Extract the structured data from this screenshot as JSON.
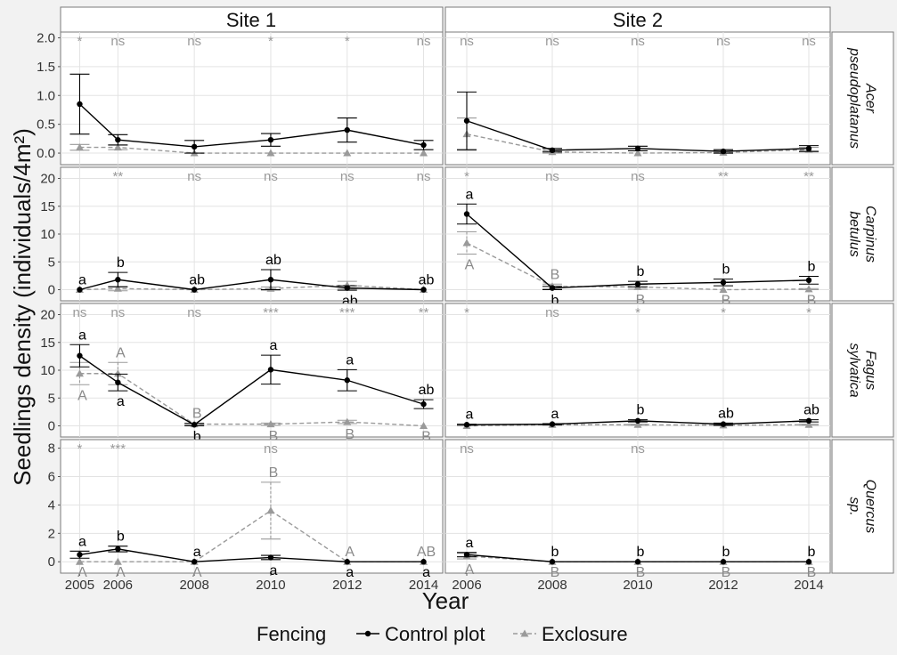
{
  "chart_data": {
    "type": "line",
    "xlabel": "Year",
    "ylabel": "Seedlings density (individuals/4m²)",
    "columns": [
      "Site 1",
      "Site 2"
    ],
    "rows": [
      {
        "label": [
          "Acer",
          "pseudoplatanus"
        ],
        "ticks": [
          "0.0",
          "0.5",
          "1.0",
          "1.5",
          "2.0"
        ],
        "ylim": [
          -0.2,
          2.1
        ],
        "tickValues": [
          0,
          0.5,
          1,
          1.5,
          2
        ]
      },
      {
        "label": [
          "Carpinus",
          "betulus"
        ],
        "ticks": [
          "0",
          "5",
          "10",
          "15",
          "20"
        ],
        "ylim": [
          -2,
          22
        ],
        "tickValues": [
          0,
          5,
          10,
          15,
          20
        ]
      },
      {
        "label": [
          "Fagus",
          "sylvatica"
        ],
        "ticks": [
          "0",
          "5",
          "10",
          "15",
          "20"
        ],
        "ylim": [
          -2,
          22
        ],
        "tickValues": [
          0,
          5,
          10,
          15,
          20
        ]
      },
      {
        "label": [
          "Quercus",
          "sp."
        ],
        "ticks": [
          "0",
          "2",
          "4",
          "6",
          "8"
        ],
        "ylim": [
          -0.8,
          8.6
        ],
        "tickValues": [
          0,
          2,
          4,
          6,
          8
        ]
      }
    ],
    "site_years": [
      {
        "years": [
          2005,
          2006,
          2008,
          2010,
          2012,
          2014
        ],
        "xlim": [
          2004.5,
          2014.5
        ],
        "tick_labels": [
          "2005",
          "2006",
          "2008",
          "2010",
          "2012",
          "2014"
        ]
      },
      {
        "years": [
          2006,
          2008,
          2010,
          2012,
          2014
        ],
        "xlim": [
          2005.5,
          2014.5
        ],
        "tick_labels": [
          "2006",
          "2008",
          "2010",
          "2012",
          "2014"
        ]
      }
    ],
    "legend": {
      "title": "Fencing",
      "items": [
        "Control plot",
        "Exclosure"
      ]
    },
    "colors": {
      "control": "#000000",
      "exclosure": "#9a9a9a"
    },
    "panels": [
      {
        "row": 0,
        "col": 0,
        "control": [
          0.85,
          0.23,
          0.11,
          0.23,
          0.4,
          0.14
        ],
        "control_err": [
          0.52,
          0.09,
          0.11,
          0.11,
          0.21,
          0.08
        ],
        "exclosure": [
          0.1,
          0.1,
          0.0,
          0.0,
          0.0,
          0.0
        ],
        "exclosure_err": [
          0.05,
          0.04,
          0,
          0,
          0,
          0
        ],
        "sig": [
          "*",
          "ns",
          "ns",
          "*",
          "*",
          "ns"
        ],
        "control_letters": [
          "",
          "",
          "",
          "",
          "",
          ""
        ],
        "control_letter_pos": [
          "above",
          "above",
          "above",
          "above",
          "above",
          "above"
        ],
        "exclosure_letters": [
          "",
          "",
          "",
          "",
          "",
          ""
        ],
        "exclosure_letter_pos": [
          "below",
          "below",
          "below",
          "below",
          "below",
          "below"
        ]
      },
      {
        "row": 0,
        "col": 1,
        "control": [
          0.56,
          0.05,
          0.08,
          0.03,
          0.08
        ],
        "control_err": [
          0.5,
          0.03,
          0.04,
          0.03,
          0.05
        ],
        "exclosure": [
          0.33,
          0.02,
          0.0,
          0.01,
          0.06
        ],
        "exclosure_err": [
          0.28,
          0.02,
          0,
          0.01,
          0.04
        ],
        "sig": [
          "ns",
          "ns",
          "ns",
          "ns",
          "ns"
        ],
        "control_letters": [
          "",
          "",
          "",
          "",
          ""
        ],
        "control_letter_pos": [
          "above",
          "above",
          "above",
          "above",
          "above"
        ],
        "exclosure_letters": [
          "",
          "",
          "",
          "",
          ""
        ],
        "exclosure_letter_pos": [
          "below",
          "below",
          "below",
          "below",
          "below"
        ]
      },
      {
        "row": 1,
        "col": 0,
        "control": [
          0.0,
          1.8,
          0.0,
          1.8,
          0.3,
          0.0
        ],
        "control_err": [
          0,
          1.3,
          0,
          1.8,
          0.4,
          0
        ],
        "exclosure": [
          0.0,
          0.2,
          0.0,
          0.2,
          0.8,
          0.0
        ],
        "exclosure_err": [
          0,
          0.4,
          0,
          0.3,
          0.7,
          0
        ],
        "sig": [
          "",
          "**",
          "ns",
          "ns",
          "ns",
          "ns"
        ],
        "control_letters": [
          "a",
          "b",
          "ab",
          "ab",
          "ab",
          "ab"
        ],
        "control_letter_pos": [
          "above",
          "above",
          "above",
          "above",
          "below",
          "above"
        ],
        "exclosure_letters": [
          "",
          "",
          "",
          "",
          "",
          ""
        ],
        "exclosure_letter_pos": [
          "below",
          "below",
          "below",
          "below",
          "below",
          "below"
        ]
      },
      {
        "row": 1,
        "col": 1,
        "control": [
          13.6,
          0.3,
          1.0,
          1.3,
          1.7
        ],
        "control_err": [
          1.8,
          0.3,
          0.5,
          0.6,
          0.7
        ],
        "exclosure": [
          8.4,
          0.6,
          0.5,
          0.0,
          0.1
        ],
        "exclosure_err": [
          2.0,
          0.4,
          0.4,
          0,
          0.1
        ],
        "sig": [
          "*",
          "ns",
          "ns",
          "**",
          "**"
        ],
        "control_letters": [
          "a",
          "b",
          "b",
          "b",
          "b"
        ],
        "control_letter_pos": [
          "above",
          "below",
          "above",
          "above",
          "above"
        ],
        "exclosure_letters": [
          "A",
          "B",
          "B",
          "B",
          "B"
        ],
        "exclosure_letter_pos": [
          "below",
          "above",
          "below",
          "below",
          "below"
        ]
      },
      {
        "row": 2,
        "col": 0,
        "control": [
          12.6,
          7.8,
          0.2,
          10.1,
          8.2,
          3.9
        ],
        "control_err": [
          2.0,
          1.5,
          0.2,
          2.6,
          1.9,
          0.8
        ],
        "exclosure": [
          9.4,
          9.4,
          0.3,
          0.3,
          0.7,
          0.0
        ],
        "exclosure_err": [
          2.0,
          2.0,
          0.2,
          0.2,
          0.3,
          0
        ],
        "sig": [
          "ns",
          "ns",
          "ns",
          "***",
          "***",
          "**"
        ],
        "control_letters": [
          "a",
          "a",
          "b",
          "a",
          "a",
          "ab"
        ],
        "control_letter_pos": [
          "above",
          "below",
          "below",
          "above",
          "above",
          "above"
        ],
        "exclosure_letters": [
          "A",
          "A",
          "B",
          "B",
          "B",
          "B"
        ],
        "exclosure_letter_pos": [
          "below",
          "above",
          "above",
          "below",
          "below",
          "below"
        ]
      },
      {
        "row": 2,
        "col": 1,
        "control": [
          0.2,
          0.3,
          0.9,
          0.3,
          0.9
        ],
        "control_err": [
          0.1,
          0.1,
          0.2,
          0.2,
          0.2
        ],
        "exclosure": [
          0.0,
          0.2,
          0.2,
          0.1,
          0.2
        ],
        "exclosure_err": [
          0,
          0.1,
          0.1,
          0.1,
          0.1
        ],
        "sig": [
          "*",
          "ns",
          "*",
          "*",
          "*"
        ],
        "control_letters": [
          "a",
          "a",
          "b",
          "ab",
          "ab"
        ],
        "control_letter_pos": [
          "above",
          "above",
          "above",
          "above",
          "above"
        ],
        "exclosure_letters": [
          "",
          "",
          "",
          "",
          ""
        ],
        "exclosure_letter_pos": [
          "below",
          "below",
          "below",
          "below",
          "below"
        ]
      },
      {
        "row": 3,
        "col": 0,
        "control": [
          0.5,
          0.9,
          0.0,
          0.3,
          0.0,
          0.0
        ],
        "control_err": [
          0.25,
          0.2,
          0,
          0.15,
          0,
          0
        ],
        "exclosure": [
          0.0,
          0.0,
          0.0,
          3.6,
          0.0,
          0.0
        ],
        "exclosure_err": [
          0,
          0,
          0,
          2.0,
          0,
          0
        ],
        "sig": [
          "*",
          "***",
          "",
          "ns",
          "",
          ""
        ],
        "control_letters": [
          "a",
          "b",
          "a",
          "a",
          "a",
          "a"
        ],
        "control_letter_pos": [
          "above",
          "above",
          "above",
          "below",
          "below",
          "below"
        ],
        "exclosure_letters": [
          "A",
          "A",
          "A",
          "B",
          "A",
          "AB"
        ],
        "exclosure_letter_pos": [
          "below",
          "below",
          "below",
          "above",
          "above",
          "above"
        ]
      },
      {
        "row": 3,
        "col": 1,
        "control": [
          0.5,
          0.0,
          0.0,
          0.0,
          0.0
        ],
        "control_err": [
          0.15,
          0,
          0,
          0,
          0
        ],
        "exclosure": [
          0.4,
          0.0,
          0.0,
          0.0,
          0.0
        ],
        "exclosure_err": [
          0.2,
          0,
          0,
          0,
          0
        ],
        "sig": [
          "ns",
          "",
          "ns",
          "",
          ""
        ],
        "control_letters": [
          "a",
          "b",
          "b",
          "b",
          "b"
        ],
        "control_letter_pos": [
          "above",
          "above",
          "above",
          "above",
          "above"
        ],
        "exclosure_letters": [
          "A",
          "B",
          "B",
          "B",
          "B"
        ],
        "exclosure_letter_pos": [
          "below",
          "below",
          "below",
          "below",
          "below"
        ]
      }
    ]
  }
}
